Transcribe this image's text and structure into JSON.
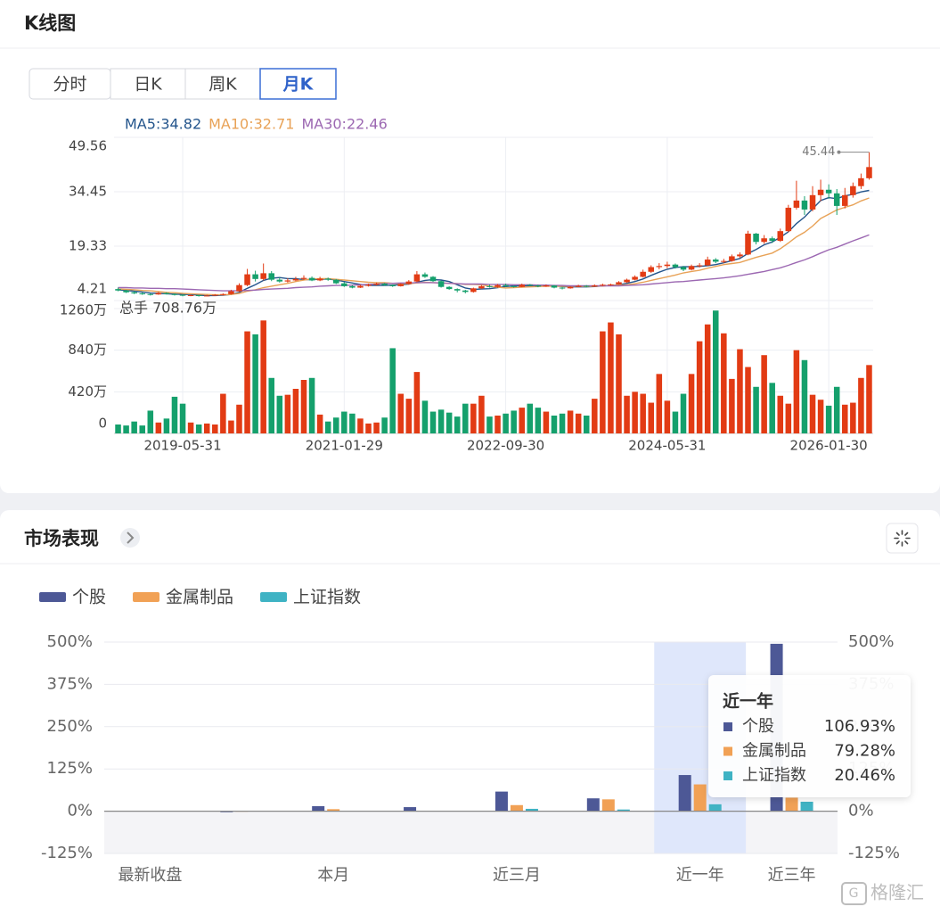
{
  "kline_card": {
    "title": "K线图",
    "tabs": [
      {
        "label": "分时",
        "active": false
      },
      {
        "label": "日K",
        "active": false
      },
      {
        "label": "周K",
        "active": false
      },
      {
        "label": "月K",
        "active": true
      }
    ]
  },
  "market_card": {
    "title": "市场表现"
  },
  "watermark": "格隆汇",
  "chart_data": [
    {
      "type": "candlestick",
      "volume_title": "总手 708.76万",
      "up_color": "#e23b14",
      "down_color": "#15a06c",
      "grid": true,
      "categories": [
        null,
        null,
        null,
        null,
        null,
        null,
        null,
        null,
        "2019-05-31",
        null,
        null,
        null,
        null,
        null,
        null,
        null,
        null,
        null,
        null,
        null,
        null,
        null,
        null,
        null,
        null,
        null,
        null,
        null,
        "2021-01-29",
        null,
        null,
        null,
        null,
        null,
        null,
        null,
        null,
        null,
        null,
        null,
        null,
        null,
        null,
        null,
        null,
        null,
        null,
        null,
        "2022-09-30",
        null,
        null,
        null,
        null,
        null,
        null,
        null,
        null,
        null,
        null,
        null,
        null,
        null,
        null,
        null,
        null,
        null,
        null,
        null,
        "2024-05-31",
        null,
        null,
        null,
        null,
        null,
        null,
        null,
        null,
        null,
        null,
        null,
        null,
        null,
        null,
        null,
        null,
        null,
        null,
        null,
        "2026-01-30",
        null,
        null,
        null,
        null,
        null
      ],
      "candles": [
        [
          7.4,
          7.8,
          6.8,
          7.0
        ],
        [
          7.0,
          7.2,
          6.3,
          6.5
        ],
        [
          6.5,
          6.8,
          6.0,
          6.2
        ],
        [
          6.2,
          6.5,
          5.8,
          6.0
        ],
        [
          6.0,
          6.2,
          5.6,
          5.9
        ],
        [
          5.9,
          6.6,
          5.8,
          6.3
        ],
        [
          6.3,
          6.5,
          5.9,
          6.0
        ],
        [
          6.0,
          6.2,
          5.6,
          5.8
        ],
        [
          5.8,
          6.0,
          5.4,
          5.6
        ],
        [
          5.6,
          5.9,
          5.4,
          5.7
        ],
        [
          5.7,
          5.8,
          5.3,
          5.5
        ],
        [
          5.5,
          5.8,
          5.4,
          5.6
        ],
        [
          5.6,
          6.0,
          5.5,
          5.8
        ],
        [
          5.8,
          6.2,
          5.6,
          6.0
        ],
        [
          6.0,
          7.2,
          5.9,
          6.8
        ],
        [
          6.8,
          9.0,
          6.6,
          8.5
        ],
        [
          8.5,
          13.0,
          8.2,
          11.5
        ],
        [
          11.5,
          12.5,
          9.5,
          10.2
        ],
        [
          10.2,
          14.5,
          9.8,
          11.8
        ],
        [
          11.8,
          12.4,
          9.6,
          10.0
        ],
        [
          10.0,
          10.6,
          9.2,
          9.5
        ],
        [
          9.5,
          10.4,
          9.2,
          9.8
        ],
        [
          9.8,
          10.8,
          9.6,
          10.2
        ],
        [
          10.2,
          11.2,
          9.9,
          10.5
        ],
        [
          10.5,
          10.9,
          9.6,
          9.8
        ],
        [
          9.8,
          10.8,
          9.6,
          10.3
        ],
        [
          10.3,
          10.6,
          9.7,
          10.0
        ],
        [
          10.0,
          10.2,
          8.8,
          9.0
        ],
        [
          9.0,
          9.3,
          8.0,
          8.2
        ],
        [
          8.2,
          8.5,
          7.6,
          7.8
        ],
        [
          7.8,
          8.6,
          7.7,
          8.3
        ],
        [
          8.3,
          8.9,
          8.1,
          8.6
        ],
        [
          8.6,
          9.2,
          8.4,
          8.9
        ],
        [
          8.9,
          9.1,
          8.3,
          8.5
        ],
        [
          8.5,
          8.7,
          8.0,
          8.2
        ],
        [
          8.2,
          9.0,
          8.1,
          8.8
        ],
        [
          8.8,
          9.9,
          8.6,
          9.5
        ],
        [
          9.5,
          12.4,
          9.3,
          11.5
        ],
        [
          11.5,
          12.0,
          10.5,
          10.8
        ],
        [
          10.8,
          11.0,
          9.4,
          9.6
        ],
        [
          9.6,
          9.8,
          7.8,
          8.0
        ],
        [
          8.0,
          8.2,
          7.2,
          7.4
        ],
        [
          7.4,
          7.6,
          6.5,
          7.0
        ],
        [
          7.0,
          7.2,
          6.2,
          6.6
        ],
        [
          6.6,
          7.8,
          6.4,
          7.6
        ],
        [
          7.6,
          8.5,
          7.4,
          8.2
        ],
        [
          8.2,
          8.6,
          7.8,
          8.0
        ],
        [
          8.0,
          8.8,
          7.8,
          8.5
        ],
        [
          8.5,
          8.9,
          8.0,
          8.2
        ],
        [
          8.2,
          8.4,
          7.8,
          8.0
        ],
        [
          8.0,
          8.9,
          7.9,
          8.6
        ],
        [
          8.6,
          8.8,
          8.2,
          8.4
        ],
        [
          8.4,
          8.6,
          7.9,
          8.1
        ],
        [
          8.1,
          8.7,
          8.0,
          8.4
        ],
        [
          8.4,
          8.5,
          7.6,
          7.8
        ],
        [
          7.8,
          8.0,
          7.3,
          7.6
        ],
        [
          7.6,
          8.2,
          7.5,
          8.0
        ],
        [
          8.0,
          8.6,
          7.9,
          8.3
        ],
        [
          8.3,
          8.5,
          7.9,
          8.1
        ],
        [
          8.1,
          8.7,
          8.0,
          8.4
        ],
        [
          8.4,
          8.9,
          8.2,
          8.6
        ],
        [
          8.6,
          8.9,
          8.3,
          8.7
        ],
        [
          8.7,
          9.6,
          8.6,
          9.3
        ],
        [
          9.3,
          10.3,
          9.1,
          10.0
        ],
        [
          10.0,
          11.2,
          9.8,
          10.8
        ],
        [
          10.8,
          12.8,
          10.6,
          12.2
        ],
        [
          12.2,
          14.0,
          11.9,
          13.5
        ],
        [
          13.5,
          14.6,
          12.9,
          13.8
        ],
        [
          13.8,
          15.0,
          13.2,
          14.2
        ],
        [
          14.2,
          14.5,
          13.1,
          13.5
        ],
        [
          13.5,
          13.8,
          12.4,
          12.8
        ],
        [
          12.8,
          14.2,
          12.6,
          13.8
        ],
        [
          13.8,
          14.6,
          13.4,
          14.0
        ],
        [
          14.0,
          16.4,
          13.8,
          15.6
        ],
        [
          15.6,
          16.0,
          14.6,
          15.0
        ],
        [
          15.0,
          15.8,
          14.6,
          15.2
        ],
        [
          15.2,
          17.0,
          15.0,
          16.5
        ],
        [
          16.5,
          17.6,
          16.0,
          17.0
        ],
        [
          17.0,
          23.6,
          16.8,
          22.8
        ],
        [
          22.8,
          23.0,
          19.8,
          20.5
        ],
        [
          20.5,
          22.4,
          20.0,
          21.5
        ],
        [
          21.5,
          22.0,
          20.2,
          20.8
        ],
        [
          20.8,
          24.2,
          20.5,
          23.5
        ],
        [
          23.5,
          30.8,
          23.2,
          30.0
        ],
        [
          30.0,
          37.5,
          29.5,
          32.0
        ],
        [
          32.0,
          33.2,
          28.0,
          29.5
        ],
        [
          29.5,
          36.0,
          29.0,
          33.5
        ],
        [
          33.5,
          37.8,
          31.8,
          35.0
        ],
        [
          35.0,
          36.5,
          32.5,
          34.0
        ],
        [
          34.0,
          35.2,
          28.0,
          30.5
        ],
        [
          30.5,
          35.5,
          29.8,
          33.5
        ],
        [
          33.5,
          37.0,
          32.8,
          36.0
        ],
        [
          36.0,
          39.5,
          35.2,
          38.2
        ],
        [
          38.2,
          45.44,
          37.8,
          41.3
        ]
      ],
      "volumes": [
        90,
        80,
        120,
        80,
        230,
        110,
        150,
        370,
        300,
        110,
        90,
        100,
        90,
        400,
        130,
        290,
        1030,
        1000,
        1140,
        560,
        380,
        390,
        450,
        540,
        560,
        190,
        120,
        160,
        220,
        200,
        150,
        100,
        110,
        160,
        860,
        400,
        350,
        620,
        330,
        220,
        240,
        210,
        170,
        300,
        300,
        380,
        170,
        180,
        200,
        230,
        260,
        300,
        260,
        220,
        180,
        200,
        230,
        200,
        180,
        350,
        1030,
        1120,
        1000,
        380,
        420,
        400,
        310,
        600,
        330,
        220,
        400,
        600,
        930,
        1100,
        1240,
        1010,
        550,
        850,
        670,
        470,
        790,
        510,
        380,
        300,
        840,
        740,
        390,
        340,
        280,
        470,
        290,
        310,
        560,
        690
      ],
      "series": [
        {
          "name": "MA5",
          "legend_label": "MA5:34.82",
          "color": "#24558c",
          "values": [
            7.2,
            7.0,
            6.8,
            6.6,
            6.3,
            6.2,
            6.1,
            6.0,
            5.9,
            5.9,
            5.7,
            5.6,
            5.6,
            5.7,
            5.9,
            6.5,
            7.6,
            8.6,
            9.8,
            10.4,
            10.6,
            10.3,
            10.3,
            10.0,
            10.0,
            10.1,
            10.2,
            9.9,
            9.5,
            9.1,
            8.7,
            8.4,
            8.4,
            8.4,
            8.5,
            8.6,
            8.8,
            9.3,
            9.8,
            10.0,
            9.9,
            9.5,
            8.6,
            7.7,
            7.3,
            7.4,
            7.5,
            7.8,
            8.1,
            8.3,
            8.3,
            8.3,
            8.3,
            8.3,
            8.3,
            8.1,
            8.0,
            8.0,
            8.0,
            8.1,
            8.3,
            8.4,
            8.6,
            9.0,
            9.5,
            10.2,
            11.2,
            12.1,
            12.9,
            13.4,
            13.6,
            13.6,
            13.7,
            13.9,
            14.2,
            14.7,
            15.3,
            15.9,
            17.3,
            18.4,
            19.7,
            20.5,
            21.8,
            23.3,
            25.6,
            27.4,
            29.7,
            32.0,
            32.8,
            32.5,
            33.3,
            33.7,
            34.4,
            34.82
          ]
        },
        {
          "name": "MA10",
          "legend_label": "MA10:32.71",
          "color": "#e8a257",
          "values": [
            7.4,
            7.3,
            7.2,
            7.0,
            6.9,
            6.7,
            6.5,
            6.4,
            6.2,
            6.1,
            6.0,
            5.9,
            5.8,
            5.8,
            5.9,
            6.2,
            6.8,
            7.2,
            7.8,
            8.2,
            8.6,
            9.0,
            9.5,
            9.9,
            10.2,
            10.3,
            10.3,
            10.1,
            9.9,
            9.7,
            9.5,
            9.3,
            9.2,
            9.2,
            9.0,
            8.9,
            8.9,
            9.1,
            9.3,
            9.2,
            9.1,
            9.0,
            8.9,
            8.7,
            8.7,
            8.6,
            8.2,
            7.9,
            7.7,
            7.8,
            7.9,
            8.0,
            8.1,
            8.2,
            8.2,
            8.2,
            8.2,
            8.2,
            8.1,
            8.2,
            8.3,
            8.4,
            8.5,
            8.6,
            8.9,
            9.3,
            9.8,
            10.3,
            10.8,
            11.3,
            11.9,
            12.3,
            12.6,
            13.2,
            13.7,
            14.2,
            14.5,
            14.8,
            15.5,
            16.2,
            16.8,
            17.4,
            18.6,
            20.2,
            21.9,
            23.2,
            24.9,
            27.0,
            28.2,
            29.4,
            30.1,
            30.8,
            31.9,
            32.71
          ]
        },
        {
          "name": "MA30",
          "legend_label": "MA30:22.46",
          "color": "#9c68b2",
          "values": [
            7.8,
            7.8,
            7.7,
            7.7,
            7.6,
            7.6,
            7.5,
            7.5,
            7.4,
            7.3,
            7.2,
            7.1,
            7.0,
            6.9,
            6.9,
            6.9,
            7.0,
            7.1,
            7.3,
            7.4,
            7.5,
            7.6,
            7.8,
            7.9,
            8.0,
            8.2,
            8.3,
            8.4,
            8.4,
            8.5,
            8.6,
            8.7,
            8.8,
            8.9,
            9.0,
            9.1,
            9.1,
            9.2,
            9.2,
            9.2,
            9.1,
            9.0,
            8.9,
            8.8,
            8.8,
            8.8,
            8.7,
            8.7,
            8.7,
            8.6,
            8.6,
            8.6,
            8.5,
            8.5,
            8.4,
            8.4,
            8.3,
            8.3,
            8.3,
            8.3,
            8.3,
            8.3,
            8.3,
            8.4,
            8.5,
            8.6,
            8.8,
            9.0,
            9.2,
            9.4,
            9.5,
            9.7,
            9.9,
            10.1,
            10.3,
            10.5,
            10.8,
            11.1,
            11.5,
            11.9,
            12.3,
            12.8,
            13.3,
            14.0,
            14.8,
            15.5,
            16.4,
            17.4,
            18.3,
            19.0,
            19.9,
            20.8,
            21.6,
            22.46
          ]
        }
      ],
      "ylim": [
        4.21,
        49.56
      ],
      "yticks": [
        4.21,
        19.33,
        34.45,
        49.56
      ],
      "vlim": [
        0,
        1260
      ],
      "vticks": [
        0,
        {
          "value": 420,
          "label": "420万"
        },
        {
          "value": 840,
          "label": "840万"
        },
        {
          "value": 1260,
          "label": "1260万"
        }
      ]
    },
    {
      "type": "bar",
      "categories": [
        "最新收盘",
        null,
        "本月",
        null,
        "近三月",
        null,
        "近一年",
        "近三年"
      ],
      "series": [
        {
          "name": "个股",
          "color": "#4d5896",
          "values": [
            -1,
            -3,
            15,
            12,
            58,
            38,
            106.93,
            495
          ],
          "value_labels": [
            null,
            null,
            null,
            null,
            null,
            null,
            "106.93%",
            null
          ]
        },
        {
          "name": "金属制品",
          "color": "#f1a155",
          "values": [
            -0.5,
            -1.5,
            6,
            1,
            18,
            35,
            79.28,
            40
          ],
          "value_labels": [
            null,
            null,
            null,
            null,
            null,
            null,
            "79.28%",
            null
          ]
        },
        {
          "name": "上证指数",
          "color": "#3fb3c4",
          "values": [
            0,
            0.5,
            1,
            0.5,
            7,
            5,
            20.46,
            28
          ],
          "value_labels": [
            null,
            null,
            null,
            null,
            null,
            null,
            "20.46%",
            null
          ]
        }
      ],
      "ylim": [
        -125,
        500
      ],
      "yticks": [
        {
          "value": -125,
          "label": "-125%"
        },
        {
          "value": 0,
          "label": "0%"
        },
        {
          "value": 125,
          "label": "125%"
        },
        {
          "value": 250,
          "label": "250%"
        },
        {
          "value": 375,
          "label": "375%"
        },
        {
          "value": 500,
          "label": "500%"
        }
      ],
      "grid": true,
      "legend": "top-left"
    }
  ]
}
